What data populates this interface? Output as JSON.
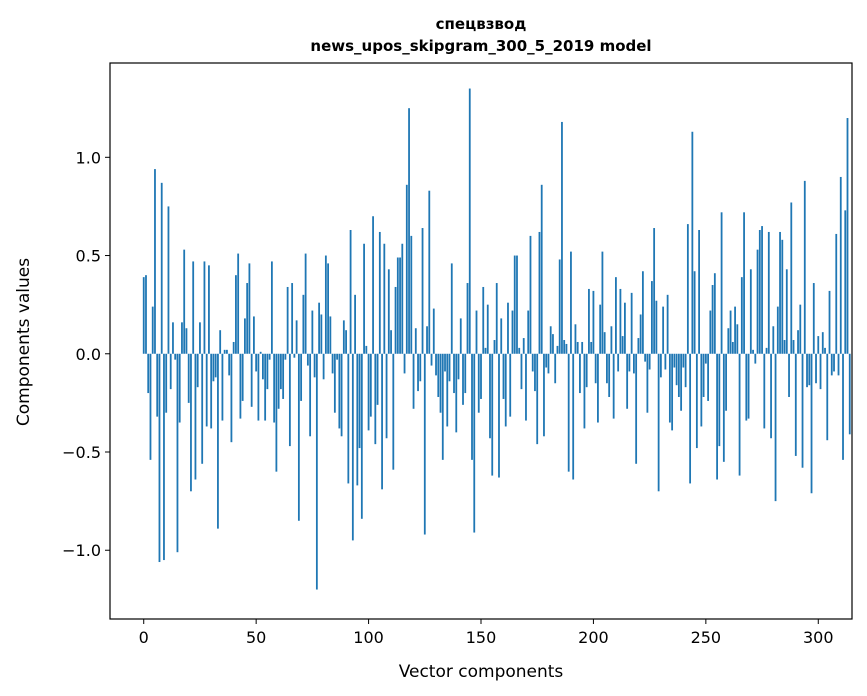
{
  "chart_data": {
    "type": "bar",
    "title": "спецвзвод",
    "subtitle": "news_upos_skipgram_300_5_2019 model",
    "xlabel": "Vector components",
    "ylabel": "Components values",
    "xlim": [
      -15,
      315
    ],
    "ylim": [
      -1.35,
      1.48
    ],
    "xticks": [
      0,
      50,
      100,
      150,
      200,
      250,
      300
    ],
    "xtick_labels": [
      "0",
      "50",
      "100",
      "150",
      "200",
      "250",
      "300"
    ],
    "yticks": [
      -1.0,
      -0.5,
      0.0,
      0.5,
      1.0
    ],
    "ytick_labels": [
      "−1.0",
      "−0.5",
      "0.0",
      "0.5",
      "1.0"
    ],
    "grid": false,
    "bar_color": "#1f77b4",
    "series": [
      {
        "name": "спецвзвод",
        "values": [
          0.39,
          0.4,
          -0.2,
          -0.54,
          0.24,
          0.94,
          -0.32,
          -1.06,
          0.87,
          -1.05,
          -0.3,
          0.75,
          -0.18,
          0.16,
          -0.03,
          -1.01,
          -0.35,
          0.16,
          0.53,
          0.13,
          -0.25,
          -0.7,
          0.47,
          -0.64,
          -0.17,
          0.16,
          -0.56,
          0.47,
          -0.37,
          0.45,
          -0.38,
          -0.14,
          -0.12,
          -0.89,
          0.12,
          -0.34,
          0.02,
          0.02,
          -0.11,
          -0.45,
          0.06,
          0.4,
          0.51,
          -0.33,
          -0.24,
          0.18,
          0.36,
          0.46,
          -0.27,
          0.19,
          -0.09,
          -0.34,
          0.01,
          -0.13,
          -0.34,
          -0.18,
          -0.03,
          0.47,
          -0.35,
          -0.6,
          -0.28,
          -0.18,
          -0.23,
          -0.03,
          0.34,
          -0.47,
          0.36,
          -0.02,
          0.17,
          -0.85,
          -0.24,
          0.3,
          0.51,
          -0.06,
          -0.42,
          0.22,
          -0.12,
          -1.2,
          0.26,
          0.2,
          -0.13,
          0.5,
          0.46,
          0.19,
          -0.1,
          -0.3,
          -0.03,
          -0.38,
          -0.42,
          0.17,
          0.12,
          -0.66,
          0.63,
          -0.95,
          0.3,
          -0.67,
          -0.48,
          -0.84,
          0.56,
          0.04,
          -0.39,
          -0.32,
          0.7,
          -0.46,
          -0.26,
          0.62,
          -0.69,
          0.56,
          -0.43,
          0.43,
          0.12,
          -0.59,
          0.34,
          0.49,
          0.49,
          0.56,
          -0.1,
          0.86,
          1.25,
          0.6,
          -0.28,
          0.13,
          -0.19,
          -0.14,
          0.64,
          -0.92,
          0.14,
          0.83,
          -0.06,
          0.23,
          -0.11,
          -0.22,
          -0.3,
          -0.54,
          -0.09,
          -0.37,
          -0.14,
          0.46,
          -0.2,
          -0.4,
          -0.13,
          0.18,
          -0.26,
          -0.2,
          0.36,
          1.35,
          -0.54,
          -0.91,
          0.22,
          -0.3,
          -0.23,
          0.34,
          0.03,
          0.25,
          -0.43,
          -0.62,
          0.07,
          0.36,
          -0.63,
          0.18,
          -0.23,
          -0.37,
          0.26,
          -0.32,
          0.22,
          0.5,
          0.5,
          0.03,
          -0.18,
          0.08,
          -0.34,
          0.22,
          0.6,
          -0.09,
          -0.19,
          -0.46,
          0.62,
          0.86,
          -0.42,
          -0.07,
          -0.1,
          0.14,
          0.1,
          -0.15,
          0.04,
          0.48,
          1.18,
          0.07,
          0.05,
          -0.6,
          0.52,
          -0.64,
          0.15,
          0.06,
          -0.2,
          0.06,
          -0.38,
          -0.17,
          0.33,
          0.06,
          0.32,
          -0.15,
          -0.35,
          0.25,
          0.52,
          0.11,
          -0.15,
          -0.22,
          0.14,
          -0.33,
          0.39,
          -0.09,
          0.33,
          0.09,
          0.26,
          -0.28,
          -0.09,
          0.31,
          -0.1,
          -0.56,
          0.08,
          0.2,
          0.42,
          -0.04,
          -0.3,
          -0.08,
          0.37,
          0.64,
          0.27,
          -0.7,
          -0.12,
          0.24,
          -0.08,
          0.3,
          -0.35,
          -0.39,
          -0.07,
          -0.16,
          -0.22,
          -0.29,
          -0.07,
          -0.17,
          0.66,
          -0.66,
          1.13,
          0.42,
          -0.48,
          0.63,
          -0.37,
          -0.22,
          -0.05,
          -0.24,
          0.22,
          0.35,
          0.41,
          -0.64,
          -0.47,
          0.72,
          -0.55,
          -0.29,
          0.13,
          0.22,
          0.06,
          0.24,
          0.15,
          -0.62,
          0.39,
          0.72,
          -0.34,
          -0.33,
          0.43,
          0.02,
          -0.05,
          0.53,
          0.63,
          0.65,
          -0.38,
          0.03,
          0.62,
          -0.43,
          0.14,
          -0.75,
          0.24,
          0.62,
          0.58,
          0.07,
          0.43,
          -0.22,
          0.77,
          0.07,
          -0.52,
          0.12,
          0.25,
          -0.58,
          0.88,
          -0.17,
          -0.16,
          -0.71,
          0.36,
          -0.15,
          0.09,
          -0.18,
          0.11,
          0.03,
          -0.44,
          0.32,
          -0.11,
          -0.09,
          0.61,
          -0.11,
          0.9,
          -0.54,
          0.73,
          1.2,
          -0.41
        ]
      }
    ]
  }
}
